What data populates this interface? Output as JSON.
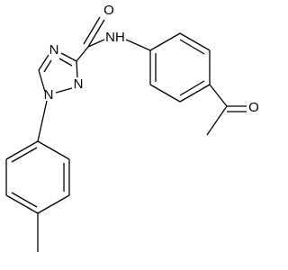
{
  "atoms": [
    {
      "label": "O"
    },
    {
      "label": "NH"
    },
    {
      "label": "N"
    },
    {
      "label": "N"
    },
    {
      "label": "N"
    },
    {
      "label": "O"
    }
  ]
}
